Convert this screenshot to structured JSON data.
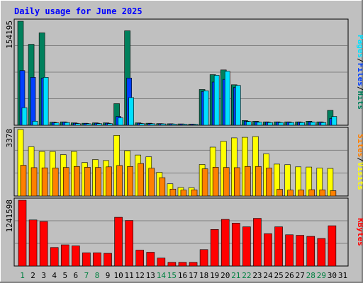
{
  "title": "Daily usage for June 2025",
  "colors": {
    "background": "#c0c0c0",
    "border": "#808080",
    "title": "#0000ff",
    "hits": "#00805c",
    "files": "#0040ff",
    "pages": "#00e0ff",
    "visits": "#ffff00",
    "sites": "#ff8000",
    "kbytes": "#ff0000",
    "gridline": "#808080",
    "weekday_label": "#000000",
    "weekend_label": "#008040"
  },
  "chart_data": [
    {
      "type": "bar",
      "panel": "hits-files-pages",
      "ytick_label": "154195",
      "ylim": [
        0,
        154195
      ],
      "legend": [
        "Pages",
        "Files",
        "Hits"
      ],
      "categories": [
        "1",
        "2",
        "3",
        "4",
        "5",
        "6",
        "7",
        "8",
        "9",
        "10",
        "11",
        "12",
        "13",
        "14",
        "15",
        "16",
        "17",
        "18",
        "19",
        "20",
        "21",
        "22",
        "23",
        "24",
        "25",
        "26",
        "27",
        "28",
        "29",
        "30",
        "31"
      ],
      "weekend_days": [
        "1",
        "7",
        "8",
        "14",
        "15",
        "21",
        "22",
        "28",
        "29"
      ],
      "series": [
        {
          "name": "Hits",
          "values": [
            154195,
            120000,
            137000,
            4500,
            5000,
            3500,
            3000,
            3500,
            3500,
            32000,
            140000,
            3500,
            3000,
            2500,
            2200,
            2000,
            1800,
            53000,
            75000,
            82000,
            60000,
            7000,
            6000,
            5000,
            5000,
            5000,
            5000,
            6000,
            5000,
            22000,
            0
          ]
        },
        {
          "name": "Files",
          "values": [
            81000,
            71000,
            70000,
            4000,
            4500,
            3000,
            2700,
            3000,
            3000,
            13000,
            70000,
            3000,
            2500,
            2200,
            2000,
            1800,
            1600,
            50000,
            64000,
            68000,
            56000,
            6000,
            5000,
            4500,
            4500,
            4500,
            4500,
            5000,
            4500,
            10000,
            0
          ]
        },
        {
          "name": "Pages",
          "values": [
            26000,
            6000,
            71000,
            3500,
            4000,
            2500,
            2200,
            2500,
            2500,
            11000,
            41000,
            2500,
            2200,
            2000,
            1700,
            1500,
            1300,
            51000,
            74000,
            80000,
            59000,
            5500,
            4500,
            4000,
            4000,
            4000,
            4000,
            4500,
            4000,
            13000,
            0
          ]
        }
      ]
    },
    {
      "type": "bar",
      "panel": "visits-sites",
      "ytick_label": "3378",
      "ylim": [
        0,
        3378
      ],
      "legend": [
        "Sites",
        "Visits"
      ],
      "categories": [
        "1",
        "2",
        "3",
        "4",
        "5",
        "6",
        "7",
        "8",
        "9",
        "10",
        "11",
        "12",
        "13",
        "14",
        "15",
        "16",
        "17",
        "18",
        "19",
        "20",
        "21",
        "22",
        "23",
        "24",
        "25",
        "26",
        "27",
        "28",
        "29",
        "30",
        "31"
      ],
      "series": [
        {
          "name": "Visits",
          "values": [
            3378,
            2500,
            2260,
            2260,
            2100,
            2260,
            1700,
            1850,
            1800,
            3080,
            2300,
            2080,
            1990,
            1200,
            620,
            430,
            420,
            1600,
            2480,
            2780,
            2950,
            2980,
            3020,
            2140,
            1620,
            1590,
            1480,
            1470,
            1420,
            1400,
            0
          ]
        },
        {
          "name": "Sites",
          "values": [
            1560,
            1440,
            1430,
            1420,
            1450,
            1500,
            1460,
            1450,
            1480,
            1550,
            1500,
            1650,
            1410,
            930,
            350,
            300,
            310,
            1380,
            1460,
            1450,
            1440,
            1500,
            1500,
            1420,
            340,
            300,
            300,
            320,
            310,
            270,
            0
          ]
        }
      ]
    },
    {
      "type": "bar",
      "panel": "kbytes",
      "ytick_label": "1241598",
      "ylim": [
        0,
        1241598
      ],
      "legend": [
        "KBytes"
      ],
      "categories": [
        "1",
        "2",
        "3",
        "4",
        "5",
        "6",
        "7",
        "8",
        "9",
        "10",
        "11",
        "12",
        "13",
        "14",
        "15",
        "16",
        "17",
        "18",
        "19",
        "20",
        "21",
        "22",
        "23",
        "24",
        "25",
        "26",
        "27",
        "28",
        "29",
        "30",
        "31"
      ],
      "series": [
        {
          "name": "KBytes",
          "values": [
            1241598,
            870000,
            840000,
            350000,
            400000,
            380000,
            250000,
            250000,
            240000,
            920000,
            860000,
            300000,
            260000,
            150000,
            70000,
            70000,
            70000,
            310000,
            690000,
            880000,
            810000,
            740000,
            900000,
            610000,
            740000,
            590000,
            580000,
            560000,
            520000,
            760000,
            0
          ]
        }
      ]
    }
  ]
}
